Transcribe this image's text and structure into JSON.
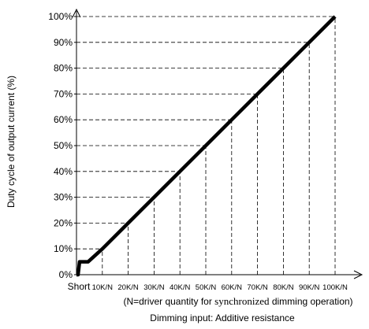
{
  "chart_data": {
    "type": "line",
    "ylabel": "Duty cycle of output current (%)",
    "xlabel": "Dimming input: Additive resistance",
    "note_prefix": "(N=driver quantity for ",
    "note_emph": "synchronized",
    "note_suffix": " dimming operation)",
    "y_ticks": [
      "0%",
      "10%",
      "20%",
      "30%",
      "40%",
      "50%",
      "60%",
      "70%",
      "80%",
      "90%",
      "100%"
    ],
    "x_ticks": [
      "Short",
      "10K/N",
      "20K/N",
      "30K/N",
      "40K/N",
      "50K/N",
      "60K/N",
      "70K/N",
      "80K/N",
      "90K/N",
      "100K/N"
    ],
    "ylim": [
      0,
      100
    ],
    "xlim": [
      0,
      100
    ],
    "grid": "dashed, at each labelled value",
    "series": [
      {
        "x": [
          0,
          0.6,
          1.2,
          4.5,
          10,
          20,
          30,
          40,
          50,
          60,
          70,
          80,
          90,
          100
        ],
        "y": [
          0,
          0,
          5,
          5,
          10,
          20,
          30,
          40,
          50,
          60,
          70,
          80,
          90,
          100
        ]
      }
    ]
  }
}
